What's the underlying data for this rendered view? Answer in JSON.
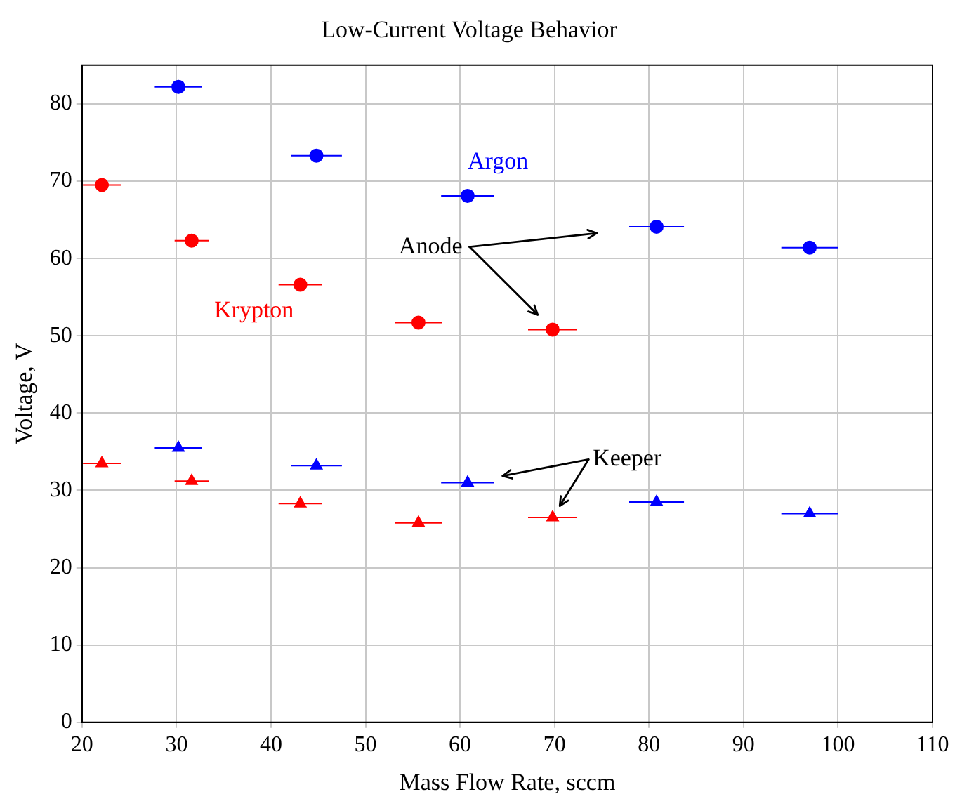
{
  "chart_data": {
    "type": "scatter",
    "title": "Low-Current Voltage Behavior",
    "xlabel": "Mass Flow Rate, sccm",
    "ylabel": "Voltage, V",
    "xlim": [
      20,
      110
    ],
    "xticks": [
      20,
      30,
      40,
      50,
      60,
      70,
      80,
      90,
      100,
      110
    ],
    "ylim": [
      0,
      85
    ],
    "yticks": [
      0,
      10,
      20,
      30,
      40,
      50,
      60,
      70,
      80
    ],
    "grid": true,
    "legend": false,
    "series": [
      {
        "name": "Argon",
        "color": "#0000ff",
        "marker": "circle",
        "x": [
          30.2,
          44.8,
          60.8,
          80.8,
          97.0
        ],
        "values": [
          82.2,
          73.3,
          68.1,
          64.1,
          61.4
        ],
        "xerrors": [
          2.5,
          2.7,
          2.8,
          2.9,
          3.0
        ]
      },
      {
        "name": "Krypton",
        "color": "#ff0000",
        "marker": "circle",
        "x": [
          22.1,
          31.6,
          43.1,
          55.6,
          69.8
        ],
        "values": [
          69.5,
          62.3,
          56.6,
          51.7,
          50.8
        ],
        "xerrors": [
          2.0,
          1.8,
          2.3,
          2.5,
          2.6
        ]
      },
      {
        "color": "#0000ff",
        "marker": "triangle",
        "x": [
          30.2,
          44.8,
          60.8,
          80.8,
          97.0
        ],
        "values": [
          35.5,
          33.2,
          31.0,
          28.5,
          27.0
        ],
        "xerrors": [
          2.5,
          2.7,
          2.8,
          2.9,
          3.0
        ]
      },
      {
        "color": "#ff0000",
        "marker": "triangle",
        "x": [
          22.1,
          31.6,
          43.1,
          55.6,
          69.8
        ],
        "values": [
          33.5,
          31.2,
          28.3,
          25.8,
          26.5
        ],
        "xerrors": [
          2.0,
          1.8,
          2.3,
          2.5,
          2.6
        ]
      }
    ],
    "annotations": [
      "Anode",
      "Keeper"
    ]
  }
}
